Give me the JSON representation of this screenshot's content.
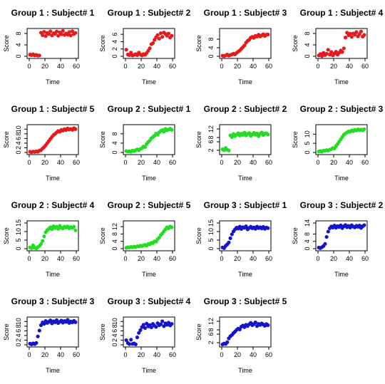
{
  "chart_data": [
    {
      "type": "scatter",
      "title": "Group 1 : Subject# 1",
      "xlabel": "Time",
      "ylabel": "Score",
      "color": "#e41a1c",
      "xlim": [
        0,
        60
      ],
      "xticks": [
        0,
        20,
        40,
        60
      ],
      "ylim": [
        0,
        9
      ],
      "yticks": [
        0,
        4,
        8
      ],
      "x": [
        1,
        3,
        5,
        7,
        9,
        11,
        13,
        15,
        17,
        19,
        21,
        23,
        25,
        27,
        29,
        31,
        33,
        35,
        37,
        39,
        41,
        43,
        45,
        47,
        49,
        51,
        53,
        55,
        57,
        59
      ],
      "y": [
        0.6,
        0.4,
        0.7,
        0.3,
        0.5,
        0.2,
        0.3,
        8.3,
        7.4,
        8.6,
        7.1,
        8.2,
        7.8,
        8.8,
        7.3,
        8.1,
        7.9,
        8.7,
        7.2,
        8.4,
        7.7,
        8.9,
        7.5,
        8.0,
        7.6,
        8.5,
        7.3,
        8.8,
        7.8,
        8.2
      ]
    },
    {
      "type": "scatter",
      "title": "Group 1 : Subject# 2",
      "xlabel": "Time",
      "ylabel": "Score",
      "color": "#e41a1c",
      "xlim": [
        0,
        60
      ],
      "xticks": [
        0,
        20,
        40,
        60
      ],
      "ylim": [
        0,
        7
      ],
      "yticks": [
        0,
        2,
        4,
        6
      ],
      "x": [
        1,
        3,
        5,
        7,
        9,
        11,
        13,
        15,
        17,
        19,
        21,
        23,
        25,
        27,
        29,
        31,
        33,
        35,
        37,
        39,
        41,
        43,
        45,
        47,
        49,
        51,
        53,
        55,
        57,
        59
      ],
      "y": [
        1.8,
        0.5,
        0.3,
        1.0,
        0.2,
        0.4,
        0.6,
        0.3,
        1.0,
        0.5,
        0.2,
        0.6,
        0.4,
        0.9,
        1.5,
        2.2,
        3.3,
        3.6,
        4.5,
        5.2,
        5.8,
        4.8,
        6.3,
        5.3,
        6.5,
        6.1,
        5.6,
        6.2,
        5.1,
        5.6
      ]
    },
    {
      "type": "scatter",
      "title": "Group 1 : Subject# 3",
      "xlabel": "Time",
      "ylabel": "Score",
      "color": "#e41a1c",
      "xlim": [
        0,
        60
      ],
      "xticks": [
        0,
        20,
        40,
        60
      ],
      "ylim": [
        0,
        12
      ],
      "yticks": [
        0,
        4,
        8
      ],
      "x": [
        1,
        3,
        5,
        7,
        9,
        11,
        13,
        15,
        17,
        19,
        21,
        23,
        25,
        27,
        29,
        31,
        33,
        35,
        37,
        39,
        41,
        43,
        45,
        47,
        49,
        51,
        53,
        55,
        57,
        59
      ],
      "y": [
        0.3,
        0.1,
        0.4,
        0.8,
        0.3,
        0.6,
        0.9,
        1.2,
        0.9,
        1.6,
        2.2,
        2.7,
        3.5,
        4.3,
        5.1,
        6.4,
        7.2,
        7.7,
        8.7,
        9.1,
        8.6,
        9.6,
        9.2,
        10.1,
        9.3,
        9.8,
        10.3,
        9.5,
        10.1,
        10.2
      ]
    },
    {
      "type": "scatter",
      "title": "Group 1 : Subject# 4",
      "xlabel": "Time",
      "ylabel": "Score",
      "color": "#e41a1c",
      "xlim": [
        0,
        60
      ],
      "xticks": [
        0,
        20,
        40,
        60
      ],
      "ylim": [
        0,
        9
      ],
      "yticks": [
        0,
        4,
        8
      ],
      "x": [
        1,
        3,
        5,
        7,
        9,
        11,
        13,
        15,
        17,
        19,
        21,
        23,
        25,
        27,
        29,
        31,
        33,
        35,
        37,
        39,
        41,
        43,
        45,
        47,
        49,
        51,
        53,
        55,
        57,
        59
      ],
      "y": [
        0.3,
        0.8,
        0.1,
        1.2,
        0.4,
        0.9,
        2.3,
        0.6,
        1.5,
        0.3,
        1.0,
        1.6,
        0.6,
        1.2,
        2.0,
        1.5,
        2.8,
        6.6,
        8.3,
        7.4,
        7.9,
        6.8,
        8.0,
        7.6,
        8.5,
        7.0,
        7.8,
        8.7,
        6.9,
        7.5
      ]
    },
    {
      "type": "scatter",
      "title": "Group 1 : Subject# 5",
      "xlabel": "Time",
      "ylabel": "Score",
      "color": "#e41a1c",
      "xlim": [
        0,
        60
      ],
      "xticks": [
        0,
        20,
        40,
        60
      ],
      "ylim": [
        0,
        11
      ],
      "yticks": [
        0,
        2,
        4,
        6,
        8,
        10
      ],
      "x": [
        1,
        3,
        5,
        7,
        9,
        11,
        13,
        15,
        17,
        19,
        21,
        23,
        25,
        27,
        29,
        31,
        33,
        35,
        37,
        39,
        41,
        43,
        45,
        47,
        49,
        51,
        53,
        55,
        57,
        59
      ],
      "y": [
        0.3,
        0.1,
        0.4,
        0.2,
        0.5,
        0.3,
        0.8,
        1.0,
        1.7,
        2.3,
        3.1,
        4.0,
        4.9,
        5.8,
        6.7,
        7.5,
        8.0,
        8.6,
        9.2,
        8.9,
        9.7,
        9.4,
        10.0,
        9.6,
        10.3,
        9.8,
        10.1,
        9.7,
        10.4,
        10.0
      ]
    },
    {
      "type": "scatter",
      "title": "Group 2 : Subject# 1",
      "xlabel": "Time",
      "ylabel": "Score",
      "color": "#22dd22",
      "xlim": [
        0,
        60
      ],
      "xticks": [
        0,
        20,
        40,
        60
      ],
      "ylim": [
        0,
        11
      ],
      "yticks": [
        0,
        4,
        8
      ],
      "x": [
        1,
        3,
        5,
        7,
        9,
        11,
        13,
        15,
        17,
        19,
        21,
        23,
        25,
        27,
        29,
        31,
        33,
        35,
        37,
        39,
        41,
        43,
        45,
        47,
        49,
        51,
        53,
        55,
        57,
        59
      ],
      "y": [
        0.6,
        0.4,
        0.5,
        0.3,
        0.8,
        0.6,
        1.0,
        1.3,
        0.9,
        1.5,
        1.8,
        2.6,
        2.3,
        3.6,
        4.5,
        5.1,
        6.1,
        6.6,
        7.2,
        8.1,
        7.7,
        8.6,
        9.2,
        9.6,
        8.9,
        10.1,
        9.5,
        9.8,
        10.2,
        9.7
      ]
    },
    {
      "type": "scatter",
      "title": "Group 2 : Subject# 2",
      "xlabel": "Time",
      "ylabel": "Score",
      "color": "#22dd22",
      "xlim": [
        0,
        60
      ],
      "xticks": [
        0,
        20,
        40,
        60
      ],
      "ylim": [
        1,
        13
      ],
      "yticks": [
        2,
        6,
        8,
        12
      ],
      "x": [
        1,
        3,
        5,
        7,
        9,
        11,
        13,
        15,
        17,
        19,
        21,
        23,
        25,
        27,
        29,
        31,
        33,
        35,
        37,
        39,
        41,
        43,
        45,
        47,
        49,
        51,
        53,
        55,
        57,
        59
      ],
      "y": [
        2.5,
        2.0,
        3.1,
        2.3,
        1.9,
        9.0,
        8.2,
        9.6,
        8.7,
        9.4,
        10.0,
        8.9,
        9.8,
        9.2,
        10.3,
        9.0,
        9.7,
        10.1,
        8.8,
        9.5,
        10.2,
        9.3,
        9.9,
        8.6,
        9.7,
        10.4,
        9.1,
        9.8,
        10.0,
        9.4
      ]
    },
    {
      "type": "scatter",
      "title": "Group 2 : Subject# 3",
      "xlabel": "Time",
      "ylabel": "Score",
      "color": "#22dd22",
      "xlim": [
        0,
        60
      ],
      "xticks": [
        0,
        20,
        40,
        60
      ],
      "ylim": [
        0,
        14
      ],
      "yticks": [
        0,
        5,
        10
      ],
      "x": [
        1,
        3,
        5,
        7,
        9,
        11,
        13,
        15,
        17,
        19,
        21,
        23,
        25,
        27,
        29,
        31,
        33,
        35,
        37,
        39,
        41,
        43,
        45,
        47,
        49,
        51,
        53,
        55,
        57,
        59
      ],
      "y": [
        0.5,
        0.8,
        0.4,
        1.0,
        0.9,
        1.3,
        1.0,
        1.5,
        1.8,
        2.4,
        2.2,
        3.5,
        4.6,
        5.9,
        7.2,
        8.4,
        9.7,
        10.3,
        10.9,
        11.5,
        11.3,
        12.0,
        11.6,
        12.3,
        12.0,
        12.6,
        12.2,
        12.5,
        12.1,
        12.7
      ]
    },
    {
      "type": "scatter",
      "title": "Group 2 : Subject# 4",
      "xlabel": "Time",
      "ylabel": "Score",
      "color": "#22dd22",
      "xlim": [
        0,
        60
      ],
      "xticks": [
        0,
        20,
        40,
        60
      ],
      "ylim": [
        0,
        15
      ],
      "yticks": [
        0,
        5,
        10,
        15
      ],
      "x": [
        1,
        3,
        5,
        7,
        9,
        11,
        13,
        15,
        17,
        19,
        21,
        23,
        25,
        27,
        29,
        31,
        33,
        35,
        37,
        39,
        41,
        43,
        45,
        47,
        49,
        51,
        53,
        55,
        57,
        59
      ],
      "y": [
        0.7,
        0.3,
        2.0,
        0.5,
        0.2,
        0.9,
        1.6,
        2.7,
        4.5,
        7.2,
        9.6,
        10.8,
        11.7,
        12.5,
        11.4,
        13.1,
        12.0,
        12.8,
        11.6,
        13.4,
        12.2,
        11.8,
        12.9,
        12.3,
        13.0,
        11.9,
        12.6,
        12.1,
        12.8,
        10.7
      ]
    },
    {
      "type": "scatter",
      "title": "Group 2 : Subject# 5",
      "xlabel": "Time",
      "ylabel": "Score",
      "color": "#22dd22",
      "xlim": [
        0,
        60
      ],
      "xticks": [
        0,
        20,
        40,
        60
      ],
      "ylim": [
        0,
        14
      ],
      "yticks": [
        0,
        4,
        8,
        12
      ],
      "x": [
        1,
        3,
        5,
        7,
        9,
        11,
        13,
        15,
        17,
        19,
        21,
        23,
        25,
        27,
        29,
        31,
        33,
        35,
        37,
        39,
        41,
        43,
        45,
        47,
        49,
        51,
        53,
        55,
        57,
        59
      ],
      "y": [
        0.4,
        0.8,
        0.6,
        1.0,
        0.7,
        1.1,
        0.9,
        1.3,
        1.2,
        1.6,
        1.4,
        1.8,
        2.0,
        1.7,
        2.6,
        2.3,
        3.2,
        3.0,
        4.0,
        3.8,
        5.2,
        6.0,
        7.4,
        8.3,
        9.5,
        10.6,
        11.7,
        11.1,
        12.1,
        11.6
      ]
    },
    {
      "type": "scatter",
      "title": "Group 3 : Subject# 1",
      "xlabel": "Time",
      "ylabel": "Score",
      "color": "#1414cc",
      "xlim": [
        0,
        60
      ],
      "xticks": [
        0,
        20,
        40,
        60
      ],
      "ylim": [
        0,
        15
      ],
      "yticks": [
        0,
        5,
        10,
        15
      ],
      "x": [
        1,
        3,
        5,
        7,
        9,
        11,
        13,
        15,
        17,
        19,
        21,
        23,
        25,
        27,
        29,
        31,
        33,
        35,
        37,
        39,
        41,
        43,
        45,
        47,
        49,
        51,
        53,
        55,
        57,
        59
      ],
      "y": [
        0.7,
        0.3,
        1.6,
        2.5,
        3.6,
        6.1,
        8.4,
        10.1,
        11.3,
        12.3,
        11.7,
        12.9,
        11.5,
        12.5,
        12.2,
        13.1,
        11.3,
        12.1,
        12.8,
        11.9,
        12.4,
        11.6,
        12.9,
        12.0,
        12.5,
        11.8,
        12.7,
        11.6,
        12.3,
        12.0
      ]
    },
    {
      "type": "scatter",
      "title": "Group 3 : Subject# 2",
      "xlabel": "Time",
      "ylabel": "Score",
      "color": "#1414cc",
      "xlim": [
        0,
        60
      ],
      "xticks": [
        0,
        20,
        40,
        60
      ],
      "ylim": [
        0,
        14
      ],
      "yticks": [
        0,
        4,
        8,
        14
      ],
      "x": [
        1,
        3,
        5,
        7,
        9,
        11,
        13,
        15,
        17,
        19,
        21,
        23,
        25,
        27,
        29,
        31,
        33,
        35,
        37,
        39,
        41,
        43,
        45,
        47,
        49,
        51,
        53,
        55,
        57,
        59
      ],
      "y": [
        0.6,
        0.3,
        0.8,
        1.4,
        2.6,
        6.4,
        9.3,
        11.1,
        12.1,
        11.5,
        12.6,
        11.4,
        12.3,
        11.8,
        12.7,
        11.2,
        12.2,
        12.9,
        11.7,
        12.4,
        11.5,
        12.8,
        12.0,
        11.6,
        12.5,
        11.9,
        12.6,
        11.3,
        12.2,
        12.8
      ]
    },
    {
      "type": "scatter",
      "title": "Group 3 : Subject# 3",
      "xlabel": "Time",
      "ylabel": "Score",
      "color": "#1414cc",
      "xlim": [
        0,
        60
      ],
      "xticks": [
        0,
        20,
        40,
        60
      ],
      "ylim": [
        0,
        11
      ],
      "yticks": [
        0,
        2,
        4,
        6,
        8,
        10
      ],
      "x": [
        1,
        3,
        5,
        7,
        9,
        11,
        13,
        15,
        17,
        19,
        21,
        23,
        25,
        27,
        29,
        31,
        33,
        35,
        37,
        39,
        41,
        43,
        45,
        47,
        49,
        51,
        53,
        55,
        57,
        59
      ],
      "y": [
        0.5,
        0.2,
        0.6,
        0.3,
        0.8,
        3.6,
        6.1,
        8.4,
        9.6,
        9.0,
        10.2,
        9.4,
        9.9,
        10.5,
        9.2,
        10.1,
        9.7,
        10.6,
        9.3,
        9.9,
        10.4,
        9.5,
        10.2,
        9.8,
        10.7,
        9.4,
        10.0,
        9.6,
        10.3,
        9.7
      ]
    },
    {
      "type": "scatter",
      "title": "Group 3 : Subject# 4",
      "xlabel": "Time",
      "ylabel": "Score",
      "color": "#1414cc",
      "xlim": [
        0,
        60
      ],
      "xticks": [
        0,
        20,
        40,
        60
      ],
      "ylim": [
        0,
        11
      ],
      "yticks": [
        0,
        2,
        4,
        6,
        8,
        10
      ],
      "x": [
        1,
        3,
        5,
        7,
        9,
        11,
        13,
        15,
        17,
        19,
        21,
        23,
        25,
        27,
        29,
        31,
        33,
        35,
        37,
        39,
        41,
        43,
        45,
        47,
        49,
        51,
        53,
        55,
        57,
        59
      ],
      "y": [
        2.0,
        0.8,
        0.3,
        2.2,
        0.4,
        0.6,
        0.2,
        3.2,
        5.1,
        6.3,
        7.6,
        8.6,
        7.2,
        9.1,
        7.9,
        8.5,
        7.5,
        9.0,
        8.2,
        7.7,
        9.3,
        8.4,
        8.8,
        10.1,
        8.0,
        9.2,
        8.6,
        9.5,
        8.3,
        9.0
      ]
    },
    {
      "type": "scatter",
      "title": "Group 3 : Subject# 5",
      "xlabel": "Time",
      "ylabel": "Score",
      "color": "#1414cc",
      "xlim": [
        0,
        60
      ],
      "xticks": [
        0,
        20,
        40,
        60
      ],
      "ylim": [
        1,
        13
      ],
      "yticks": [
        2,
        6,
        8,
        12
      ],
      "x": [
        1,
        3,
        5,
        7,
        9,
        11,
        13,
        15,
        17,
        19,
        21,
        23,
        25,
        27,
        29,
        31,
        33,
        35,
        37,
        39,
        41,
        43,
        45,
        47,
        49,
        51,
        53,
        55,
        57,
        59
      ],
      "y": [
        1.2,
        1.6,
        1.4,
        2.2,
        4.0,
        5.0,
        5.6,
        6.5,
        7.2,
        8.0,
        8.6,
        8.2,
        9.5,
        10.0,
        9.3,
        10.4,
        9.8,
        10.6,
        11.3,
        10.2,
        10.7,
        11.5,
        9.8,
        10.8,
        10.3,
        11.0,
        10.5,
        9.9,
        10.7,
        10.2
      ]
    }
  ]
}
